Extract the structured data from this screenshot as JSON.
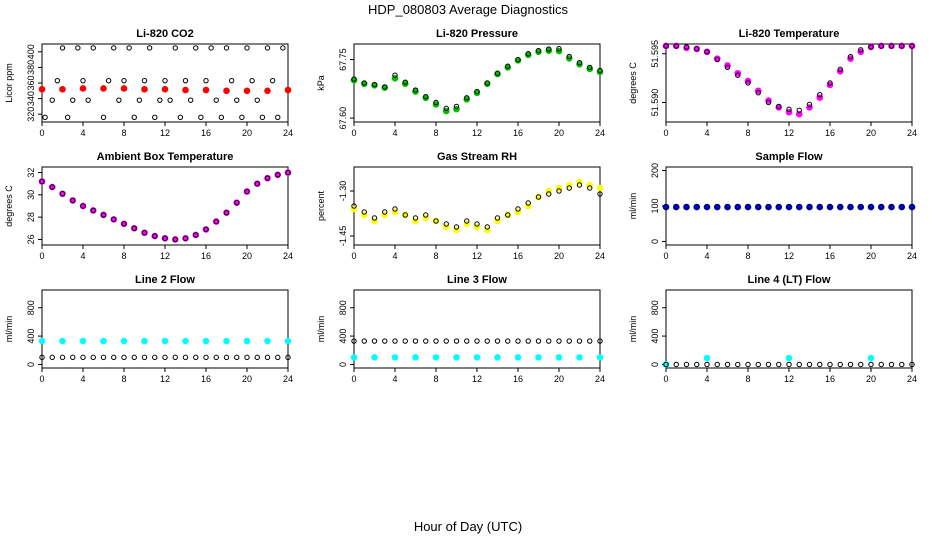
{
  "title": "HDP_080803  Average Diagnostics",
  "xlabel": "Hour of Day (UTC)",
  "colors": {
    "co2": "#ff0000",
    "pressure": "#00c000",
    "temperature": "#ff00ff",
    "ambient": "#ff00ff",
    "rh": "#ffff00",
    "sample": "#0000ff",
    "line": "#00ffff",
    "avg": "#000000"
  },
  "chart_data": [
    {
      "type": "scatter",
      "title": "Li-820 CO2",
      "ylabel": "Licor ppm",
      "xlim": [
        0,
        24
      ],
      "ylim": [
        310,
        410
      ],
      "xticks": [
        "0",
        "4",
        "8",
        "12",
        "16",
        "20",
        "24"
      ],
      "yticks": [
        "320",
        "340",
        "360",
        "380",
        "400"
      ],
      "series": [
        {
          "color": "red",
          "x": [
            0,
            2,
            4,
            6,
            8,
            10,
            12,
            14,
            16,
            18,
            20,
            22,
            24
          ],
          "y": [
            352,
            352,
            353,
            353,
            353,
            352,
            352,
            351,
            351,
            350,
            350,
            350,
            351
          ]
        },
        {
          "color": "black",
          "x": [
            0.3,
            1,
            1.5,
            2,
            2.5,
            3,
            3.5,
            4,
            4.5,
            5,
            6,
            6.5,
            7,
            7.5,
            8,
            8.5,
            9,
            9.5,
            10,
            10.5,
            11,
            11.5,
            12,
            12.5,
            13,
            13.5,
            14,
            14.5,
            15,
            15.5,
            16,
            16.5,
            17,
            17.5,
            18,
            18.5,
            19,
            19.5,
            20,
            20.5,
            21,
            21.5,
            22,
            22.5,
            23,
            23.5
          ],
          "y": [
            316,
            338,
            363,
            405,
            316,
            338,
            405,
            363,
            338,
            405,
            316,
            363,
            405,
            338,
            363,
            405,
            316,
            338,
            363,
            405,
            316,
            338,
            363,
            338,
            405,
            316,
            363,
            338,
            405,
            316,
            363,
            405,
            338,
            316,
            405,
            363,
            338,
            316,
            405,
            363,
            338,
            316,
            405,
            363,
            316,
            405
          ]
        }
      ]
    },
    {
      "type": "scatter",
      "title": "Li-820 Pressure",
      "ylabel": "kPa",
      "xlim": [
        0,
        24
      ],
      "ylim": [
        67.59,
        67.79
      ],
      "xticks": [
        "0",
        "4",
        "8",
        "12",
        "16",
        "20",
        "24"
      ],
      "yticks": [
        "67.60",
        "67.75"
      ],
      "series": [
        {
          "color": "green",
          "x": [
            0,
            1,
            2,
            3,
            4,
            5,
            6,
            7,
            8,
            9,
            10,
            11,
            12,
            13,
            14,
            15,
            16,
            17,
            18,
            19,
            20,
            21,
            22,
            23,
            24
          ],
          "y": [
            67.697,
            67.688,
            67.684,
            67.678,
            67.702,
            67.688,
            67.668,
            67.652,
            67.635,
            67.618,
            67.623,
            67.648,
            67.665,
            67.688,
            67.713,
            67.73,
            67.748,
            67.762,
            67.77,
            67.773,
            67.772,
            67.753,
            67.738,
            67.726,
            67.718
          ]
        },
        {
          "color": "black",
          "x": [
            0,
            1,
            2,
            3,
            4,
            5,
            6,
            7,
            8,
            9,
            10,
            11,
            12,
            13,
            14,
            15,
            16,
            17,
            18,
            19,
            20,
            21,
            22,
            23,
            24
          ],
          "y": [
            67.7,
            67.69,
            67.686,
            67.68,
            67.71,
            67.692,
            67.672,
            67.655,
            67.64,
            67.625,
            67.63,
            67.652,
            67.668,
            67.69,
            67.715,
            67.733,
            67.75,
            67.765,
            67.773,
            67.777,
            67.778,
            67.758,
            67.742,
            67.73,
            67.722
          ]
        }
      ]
    },
    {
      "type": "scatter",
      "title": "Li-820 Temperature",
      "ylabel": "degrees C",
      "xlim": [
        0,
        24
      ],
      "ylim": [
        51.588,
        51.596
      ],
      "xticks": [
        "0",
        "4",
        "8",
        "12",
        "16",
        "20",
        "24"
      ],
      "yticks": [
        "51.590",
        "51.595"
      ],
      "series": [
        {
          "color": "magenta",
          "x": [
            0,
            1,
            2,
            3,
            4,
            5,
            6,
            7,
            8,
            9,
            10,
            11,
            12,
            13,
            14,
            15,
            16,
            17,
            18,
            19,
            20,
            21,
            22,
            23,
            24
          ],
          "y": [
            51.5958,
            51.5958,
            51.5956,
            51.5955,
            51.5952,
            51.5945,
            51.5938,
            51.593,
            51.5922,
            51.5912,
            51.5902,
            51.5895,
            51.589,
            51.5888,
            51.5895,
            51.5905,
            51.5918,
            51.5932,
            51.5945,
            51.5952,
            51.5957,
            51.5958,
            51.5958,
            51.5958,
            51.5958
          ]
        },
        {
          "color": "black",
          "x": [
            0,
            1,
            2,
            3,
            4,
            5,
            6,
            7,
            8,
            9,
            10,
            11,
            12,
            13,
            14,
            15,
            16,
            17,
            18,
            19,
            20,
            21,
            22,
            23,
            24
          ],
          "y": [
            51.5958,
            51.5958,
            51.5957,
            51.5955,
            51.5952,
            51.5944,
            51.5936,
            51.5928,
            51.592,
            51.591,
            51.59,
            51.5896,
            51.5893,
            51.5892,
            51.5898,
            51.5908,
            51.592,
            51.5934,
            51.5947,
            51.5954,
            51.5957,
            51.5958,
            51.5958,
            51.5958,
            51.5958
          ]
        }
      ]
    },
    {
      "type": "scatter",
      "title": "Ambient Box Temperature",
      "ylabel": "degrees C",
      "xlim": [
        0,
        24
      ],
      "ylim": [
        25.5,
        32.5
      ],
      "xticks": [
        "0",
        "4",
        "8",
        "12",
        "16",
        "20",
        "24"
      ],
      "yticks": [
        "26",
        "28",
        "30",
        "32"
      ],
      "series": [
        {
          "color": "magenta",
          "x": [
            0,
            1,
            2,
            3,
            4,
            5,
            6,
            7,
            8,
            9,
            10,
            11,
            12,
            13,
            14,
            15,
            16,
            17,
            18,
            19,
            20,
            21,
            22,
            23,
            24
          ],
          "y": [
            31.2,
            30.7,
            30.1,
            29.5,
            29.0,
            28.6,
            28.2,
            27.8,
            27.4,
            27.0,
            26.6,
            26.3,
            26.1,
            26.0,
            26.1,
            26.4,
            26.9,
            27.6,
            28.4,
            29.3,
            30.3,
            31.0,
            31.5,
            31.8,
            32.0
          ]
        },
        {
          "color": "black",
          "x": [
            0,
            1,
            2,
            3,
            4,
            5,
            6,
            7,
            8,
            9,
            10,
            11,
            12,
            13,
            14,
            15,
            16,
            17,
            18,
            19,
            20,
            21,
            22,
            23,
            24
          ],
          "y": [
            31.2,
            30.7,
            30.1,
            29.5,
            29.0,
            28.6,
            28.2,
            27.8,
            27.4,
            27.0,
            26.6,
            26.3,
            26.1,
            26.0,
            26.1,
            26.4,
            26.9,
            27.6,
            28.4,
            29.3,
            30.3,
            31.0,
            31.5,
            31.8,
            32.0
          ]
        }
      ]
    },
    {
      "type": "scatter",
      "title": "Gas Stream RH",
      "ylabel": "percent",
      "xlim": [
        0,
        24
      ],
      "ylim": [
        -1.48,
        -1.22
      ],
      "xticks": [
        "0",
        "4",
        "8",
        "12",
        "16",
        "20",
        "24"
      ],
      "yticks": [
        "-1.45",
        "-1.30"
      ],
      "series": [
        {
          "color": "yellow",
          "x": [
            0,
            1,
            2,
            3,
            4,
            5,
            6,
            7,
            8,
            9,
            10,
            11,
            12,
            13,
            14,
            15,
            16,
            17,
            18,
            19,
            20,
            21,
            22,
            23,
            24
          ],
          "y": [
            -1.36,
            -1.38,
            -1.4,
            -1.38,
            -1.37,
            -1.38,
            -1.4,
            -1.39,
            -1.4,
            -1.42,
            -1.43,
            -1.41,
            -1.42,
            -1.43,
            -1.4,
            -1.38,
            -1.37,
            -1.35,
            -1.32,
            -1.3,
            -1.29,
            -1.28,
            -1.27,
            -1.28,
            -1.29
          ]
        },
        {
          "color": "black",
          "x": [
            0,
            1,
            2,
            3,
            4,
            5,
            6,
            7,
            8,
            9,
            10,
            11,
            12,
            13,
            14,
            15,
            16,
            17,
            18,
            19,
            20,
            21,
            22,
            23,
            24
          ],
          "y": [
            -1.35,
            -1.37,
            -1.39,
            -1.37,
            -1.36,
            -1.38,
            -1.39,
            -1.38,
            -1.4,
            -1.41,
            -1.42,
            -1.4,
            -1.41,
            -1.42,
            -1.39,
            -1.38,
            -1.36,
            -1.34,
            -1.32,
            -1.31,
            -1.3,
            -1.29,
            -1.28,
            -1.29,
            -1.31
          ]
        }
      ]
    },
    {
      "type": "scatter",
      "title": "Sample Flow",
      "ylabel": "ml/min",
      "xlim": [
        0,
        24
      ],
      "ylim": [
        -10,
        210
      ],
      "xticks": [
        "0",
        "4",
        "8",
        "12",
        "16",
        "20",
        "24"
      ],
      "yticks": [
        "0",
        "100",
        "200"
      ],
      "series": [
        {
          "color": "blue",
          "x": [
            0,
            1,
            2,
            3,
            4,
            5,
            6,
            7,
            8,
            9,
            10,
            11,
            12,
            13,
            14,
            15,
            16,
            17,
            18,
            19,
            20,
            21,
            22,
            23,
            24
          ],
          "y": [
            97,
            97,
            97,
            97,
            97,
            97,
            97,
            97,
            97,
            97,
            97,
            97,
            97,
            97,
            97,
            97,
            97,
            97,
            97,
            97,
            97,
            97,
            97,
            97,
            97
          ]
        },
        {
          "color": "black",
          "x": [
            0,
            1,
            2,
            3,
            4,
            5,
            6,
            7,
            8,
            9,
            10,
            11,
            12,
            13,
            14,
            15,
            16,
            17,
            18,
            19,
            20,
            21,
            22,
            23,
            24
          ],
          "y": [
            98,
            98,
            98,
            98,
            98,
            98,
            98,
            98,
            98,
            98,
            98,
            98,
            98,
            98,
            98,
            98,
            98,
            98,
            98,
            98,
            98,
            98,
            98,
            98,
            98
          ]
        }
      ]
    },
    {
      "type": "scatter",
      "title": "Line 2 Flow",
      "ylabel": "ml/min",
      "xlim": [
        0,
        24
      ],
      "ylim": [
        -50,
        1050
      ],
      "xticks": [
        "0",
        "4",
        "8",
        "12",
        "16",
        "20",
        "24"
      ],
      "yticks": [
        "0",
        "400",
        "800"
      ],
      "series": [
        {
          "color": "cyan",
          "x": [
            0,
            2,
            4,
            6,
            8,
            10,
            12,
            14,
            16,
            18,
            20,
            22,
            24
          ],
          "y": [
            330,
            330,
            330,
            330,
            330,
            330,
            330,
            330,
            330,
            330,
            330,
            330,
            330
          ]
        },
        {
          "color": "black",
          "x": [
            0,
            1,
            2,
            3,
            4,
            5,
            6,
            7,
            8,
            9,
            10,
            11,
            12,
            13,
            14,
            15,
            16,
            17,
            18,
            19,
            20,
            21,
            22,
            23,
            24
          ],
          "y": [
            100,
            100,
            100,
            100,
            100,
            100,
            100,
            100,
            100,
            100,
            100,
            100,
            100,
            100,
            100,
            100,
            100,
            100,
            100,
            100,
            100,
            100,
            100,
            100,
            100
          ]
        }
      ]
    },
    {
      "type": "scatter",
      "title": "Line 3 Flow",
      "ylabel": "ml/min",
      "xlim": [
        0,
        24
      ],
      "ylim": [
        -50,
        1050
      ],
      "xticks": [
        "0",
        "4",
        "8",
        "12",
        "16",
        "20",
        "24"
      ],
      "yticks": [
        "0",
        "400",
        "800"
      ],
      "series": [
        {
          "color": "cyan",
          "x": [
            0,
            2,
            4,
            6,
            8,
            10,
            12,
            14,
            16,
            18,
            20,
            22,
            24
          ],
          "y": [
            100,
            100,
            100,
            100,
            100,
            100,
            100,
            100,
            100,
            100,
            100,
            100,
            100
          ]
        },
        {
          "color": "black",
          "x": [
            0,
            1,
            2,
            3,
            4,
            5,
            6,
            7,
            8,
            9,
            10,
            11,
            12,
            13,
            14,
            15,
            16,
            17,
            18,
            19,
            20,
            21,
            22,
            23,
            24
          ],
          "y": [
            330,
            330,
            330,
            330,
            330,
            330,
            330,
            330,
            330,
            330,
            330,
            330,
            330,
            330,
            330,
            330,
            330,
            330,
            330,
            330,
            330,
            330,
            330,
            330,
            330
          ]
        }
      ]
    },
    {
      "type": "scatter",
      "title": "Line 4 (LT) Flow",
      "ylabel": "ml/min",
      "xlim": [
        0,
        24
      ],
      "ylim": [
        -50,
        1050
      ],
      "xticks": [
        "0",
        "4",
        "8",
        "12",
        "16",
        "20",
        "24"
      ],
      "yticks": [
        "0",
        "400",
        "800"
      ],
      "series": [
        {
          "color": "cyan",
          "x": [
            0,
            4,
            12,
            20
          ],
          "y": [
            0,
            90,
            90,
            90
          ]
        },
        {
          "color": "black",
          "x": [
            0,
            1,
            2,
            3,
            4,
            5,
            6,
            7,
            8,
            9,
            10,
            11,
            12,
            13,
            14,
            15,
            16,
            17,
            18,
            19,
            20,
            21,
            22,
            23,
            24
          ],
          "y": [
            0,
            0,
            0,
            0,
            0,
            0,
            0,
            0,
            0,
            0,
            0,
            0,
            0,
            0,
            0,
            0,
            0,
            0,
            0,
            0,
            0,
            0,
            0,
            0,
            0
          ]
        }
      ]
    }
  ]
}
